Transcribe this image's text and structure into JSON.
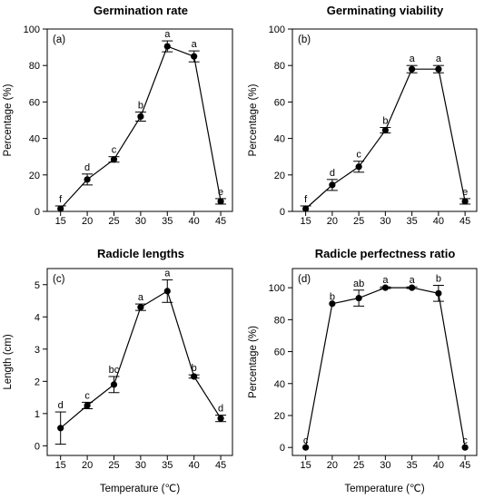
{
  "chart_data": [
    {
      "type": "line",
      "panel_label": "(a)",
      "title": "Germination rate",
      "xlabel": "",
      "ylabel": "Percentage (%)",
      "x": [
        15,
        20,
        25,
        30,
        35,
        40,
        45
      ],
      "xticks": [
        "15",
        "20",
        "25",
        "30",
        "35",
        "40",
        "45"
      ],
      "ylim": [
        0,
        100
      ],
      "yticks": [
        "0",
        "20",
        "40",
        "60",
        "80",
        "100"
      ],
      "values": [
        1.5,
        17.5,
        28.5,
        52,
        90.5,
        85,
        5.5
      ],
      "errors": [
        1.5,
        3,
        1.5,
        2.5,
        3,
        3,
        1.5
      ],
      "letters": [
        "f",
        "d",
        "c",
        "b",
        "a",
        "a",
        "e"
      ]
    },
    {
      "type": "line",
      "panel_label": "(b)",
      "title": "Germinating viability",
      "xlabel": "",
      "ylabel": "Percentage (%)",
      "x": [
        15,
        20,
        25,
        30,
        35,
        40,
        45
      ],
      "xticks": [
        "15",
        "20",
        "25",
        "30",
        "35",
        "40",
        "45"
      ],
      "ylim": [
        0,
        100
      ],
      "yticks": [
        "0",
        "20",
        "40",
        "60",
        "80",
        "100"
      ],
      "values": [
        1.5,
        14.5,
        24.5,
        44.5,
        78,
        78,
        5.5
      ],
      "errors": [
        1.5,
        3,
        3,
        1.5,
        2,
        2,
        1.5
      ],
      "letters": [
        "f",
        "d",
        "c",
        "b",
        "a",
        "a",
        "e"
      ]
    },
    {
      "type": "line",
      "panel_label": "(c)",
      "title": "Radicle lengths",
      "xlabel": "Temperature (℃)",
      "ylabel": "Length (cm)",
      "x": [
        15,
        20,
        25,
        30,
        35,
        40,
        45
      ],
      "xticks": [
        "15",
        "20",
        "25",
        "30",
        "35",
        "40",
        "45"
      ],
      "ylim": [
        -0.3,
        5.5
      ],
      "yticks": [
        "0",
        "1",
        "2",
        "3",
        "4",
        "5"
      ],
      "values": [
        0.55,
        1.25,
        1.9,
        4.3,
        4.8,
        2.15,
        0.85
      ],
      "errors": [
        0.5,
        0.1,
        0.25,
        0.1,
        0.35,
        0.05,
        0.1
      ],
      "letters": [
        "d",
        "c",
        "bc",
        "a",
        "a",
        "b",
        "d"
      ]
    },
    {
      "type": "line",
      "panel_label": "(d)",
      "title": "Radicle perfectness ratio",
      "xlabel": "Temperature (℃)",
      "ylabel": "Percentage (%)",
      "x": [
        15,
        20,
        25,
        30,
        35,
        40,
        45
      ],
      "xticks": [
        "15",
        "20",
        "25",
        "30",
        "35",
        "40",
        "45"
      ],
      "ylim": [
        -5,
        112
      ],
      "yticks": [
        "0",
        "20",
        "40",
        "60",
        "80",
        "100"
      ],
      "values": [
        0,
        90,
        93.5,
        100,
        100,
        96.5,
        0
      ],
      "errors": [
        0,
        0,
        5,
        0.5,
        0.5,
        5,
        0
      ],
      "letters": [
        "c",
        "b",
        "ab",
        "a",
        "a",
        "b",
        "c"
      ]
    }
  ]
}
